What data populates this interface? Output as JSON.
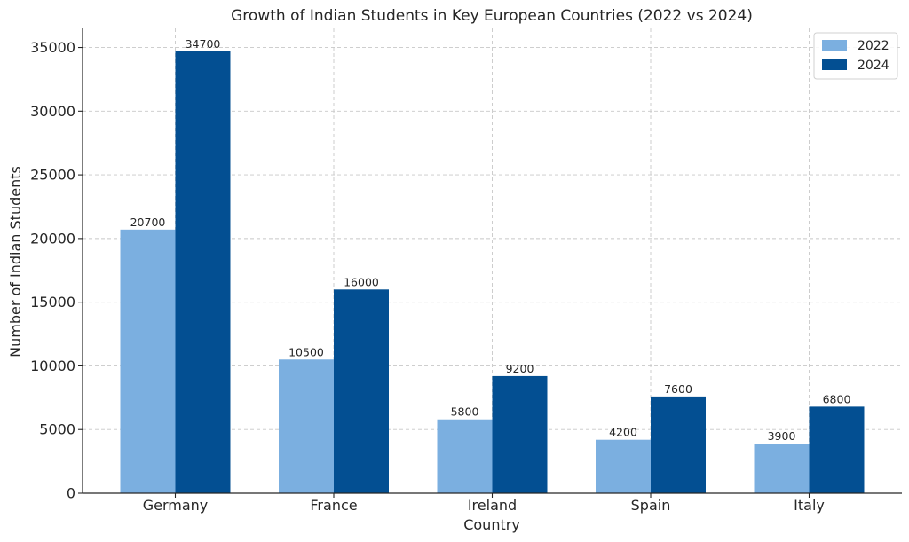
{
  "chart_data": {
    "type": "bar",
    "title": "Growth of Indian Students in Key European Countries (2022 vs 2024)",
    "xlabel": "Country",
    "ylabel": "Number of Indian Students",
    "categories": [
      "Germany",
      "France",
      "Ireland",
      "Spain",
      "Italy"
    ],
    "series": [
      {
        "name": "2022",
        "color": "#7bafe0",
        "values": [
          20700,
          10500,
          5800,
          4200,
          3900
        ]
      },
      {
        "name": "2024",
        "color": "#034f92",
        "values": [
          34700,
          16000,
          9200,
          7600,
          6800
        ]
      }
    ],
    "ylim": [
      0,
      36500
    ],
    "yticks": [
      0,
      5000,
      10000,
      15000,
      20000,
      25000,
      30000,
      35000
    ],
    "grid": true,
    "legend": "top-right",
    "data_labels": true
  }
}
